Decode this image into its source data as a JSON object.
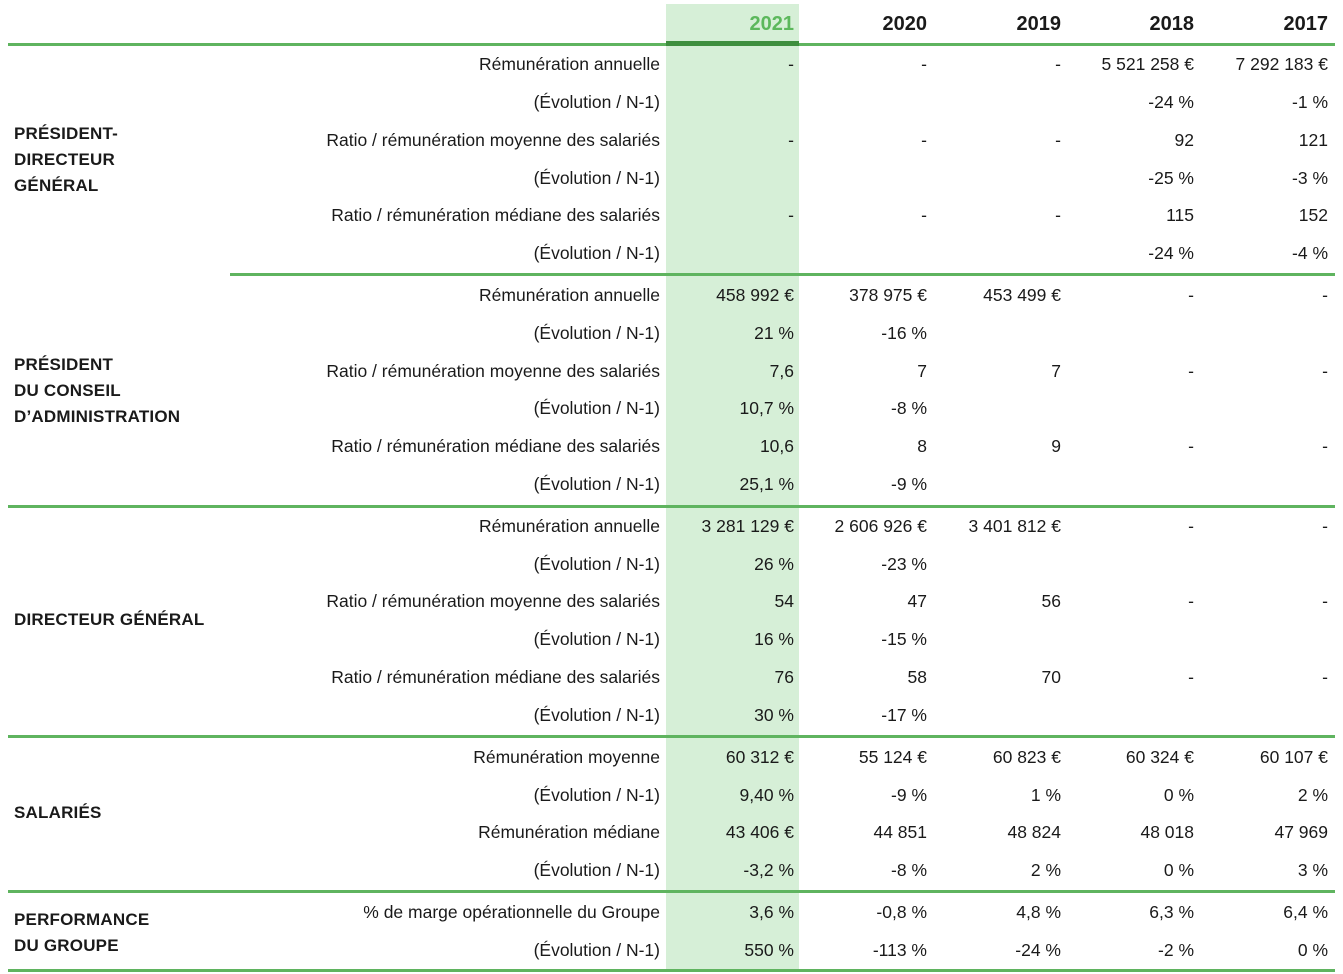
{
  "years": [
    "2021",
    "2020",
    "2019",
    "2018",
    "2017"
  ],
  "groups": [
    {
      "label_lines": [
        "PRÉSIDENT-",
        "DIRECTEUR",
        "GÉNÉRAL"
      ],
      "rows": [
        {
          "label": "Rémunération annuelle",
          "values": [
            "-",
            "-",
            "-",
            "5 521 258 €",
            "7 292 183 €"
          ]
        },
        {
          "label": "(Évolution / N-1)",
          "values": [
            "",
            "",
            "",
            "-24 %",
            "-1 %"
          ]
        },
        {
          "label": "Ratio / rémunération moyenne des salariés",
          "values": [
            "-",
            "-",
            "-",
            "92",
            "121"
          ]
        },
        {
          "label": "(Évolution / N-1)",
          "values": [
            "",
            "",
            "",
            "-25 %",
            "-3 %"
          ]
        },
        {
          "label": "Ratio / rémunération médiane des salariés",
          "values": [
            "-",
            "-",
            "-",
            "115",
            "152"
          ]
        },
        {
          "label": "(Évolution / N-1)",
          "values": [
            "",
            "",
            "",
            "-24 %",
            "-4 %"
          ]
        }
      ]
    },
    {
      "label_lines": [
        "PRÉSIDENT",
        "DU CONSEIL",
        "D’ADMINISTRATION"
      ],
      "rows": [
        {
          "label": "Rémunération annuelle",
          "values": [
            "458 992 €",
            "378 975 €",
            "453 499 €",
            "-",
            "-"
          ]
        },
        {
          "label": "(Évolution / N-1)",
          "values": [
            "21 %",
            "-16 %",
            "",
            "",
            ""
          ]
        },
        {
          "label": "Ratio / rémunération moyenne des salariés",
          "values": [
            "7,6",
            "7",
            "7",
            "-",
            "-"
          ]
        },
        {
          "label": "(Évolution / N-1)",
          "values": [
            "10,7 %",
            "-8 %",
            "",
            "",
            ""
          ]
        },
        {
          "label": "Ratio / rémunération médiane des salariés",
          "values": [
            "10,6",
            "8",
            "9",
            "-",
            "-"
          ]
        },
        {
          "label": "(Évolution / N-1)",
          "values": [
            "25,1 %",
            "-9 %",
            "",
            "",
            ""
          ]
        }
      ]
    },
    {
      "label_lines": [
        "DIRECTEUR GÉNÉRAL"
      ],
      "rows": [
        {
          "label": "Rémunération annuelle",
          "values": [
            "3 281 129 €",
            "2 606 926 €",
            "3 401 812 €",
            "-",
            "-"
          ]
        },
        {
          "label": "(Évolution / N-1)",
          "values": [
            "26 %",
            "-23 %",
            "",
            "",
            ""
          ]
        },
        {
          "label": "Ratio / rémunération moyenne des salariés",
          "values": [
            "54",
            "47",
            "56",
            "-",
            "-"
          ]
        },
        {
          "label": "(Évolution / N-1)",
          "values": [
            "16 %",
            "-15 %",
            "",
            "",
            ""
          ]
        },
        {
          "label": "Ratio / rémunération médiane des salariés",
          "values": [
            "76",
            "58",
            "70",
            "-",
            "-"
          ]
        },
        {
          "label": "(Évolution / N-1)",
          "values": [
            "30 %",
            "-17 %",
            "",
            "",
            ""
          ]
        }
      ]
    },
    {
      "label_lines": [
        "SALARIÉS"
      ],
      "rows": [
        {
          "label": "Rémunération moyenne",
          "values": [
            "60 312 €",
            "55 124 €",
            "60 823 €",
            "60 324 €",
            "60 107 €"
          ]
        },
        {
          "label": "(Évolution / N-1)",
          "values": [
            "9,40 %",
            "-9 %",
            "1 %",
            "0 %",
            "2 %"
          ]
        },
        {
          "label": "Rémunération médiane",
          "values": [
            "43 406 €",
            "44 851",
            "48 824",
            "48 018",
            "47 969"
          ]
        },
        {
          "label": "(Évolution / N-1)",
          "values": [
            "-3,2 %",
            "-8 %",
            "2 %",
            "0 %",
            "3 %"
          ]
        }
      ]
    },
    {
      "label_lines": [
        "PERFORMANCE",
        "DU GROUPE"
      ],
      "rows": [
        {
          "label": "% de marge opérationnelle du Groupe",
          "values": [
            "3,6 %",
            "-0,8 %",
            "4,8 %",
            "6,3 %",
            "6,4 %"
          ]
        },
        {
          "label": "(Évolution / N-1)",
          "values": [
            "550 %",
            "-113 %",
            "-24 %",
            "-2 %",
            "0 %"
          ]
        }
      ]
    }
  ]
}
